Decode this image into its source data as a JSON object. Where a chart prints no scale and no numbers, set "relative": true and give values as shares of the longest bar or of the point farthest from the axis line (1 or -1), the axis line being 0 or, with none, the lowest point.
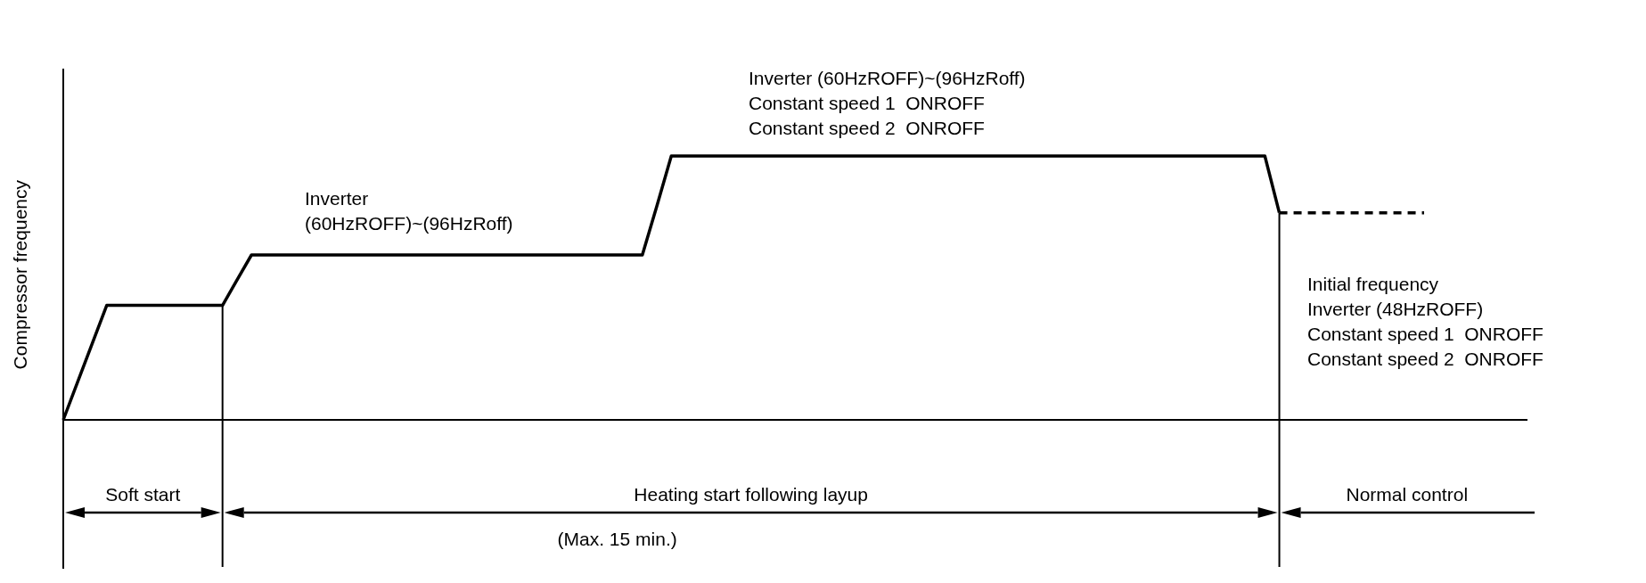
{
  "chart_data": {
    "type": "line",
    "relative": true,
    "ylabel": "Compressor frequency",
    "categories": [
      null,
      null,
      null,
      null,
      null,
      null,
      null,
      null,
      null,
      null,
      null,
      null,
      null,
      null,
      null,
      null,
      null,
      null,
      null,
      null,
      null,
      null,
      null,
      null,
      null,
      null,
      null,
      null,
      null,
      null,
      null,
      null,
      null,
      null,
      null,
      null,
      null,
      null,
      null,
      null,
      null,
      null,
      null,
      null,
      null,
      null,
      null,
      null,
      null,
      null,
      null,
      null,
      null,
      null,
      null,
      null,
      null,
      null,
      null,
      null,
      null,
      null,
      null,
      null,
      null,
      null,
      null,
      null,
      null,
      null,
      null,
      null,
      null,
      null,
      null,
      null,
      null,
      null,
      null,
      null,
      null,
      null,
      null,
      null,
      null,
      null,
      null,
      null,
      null,
      null,
      null,
      null,
      null,
      null,
      null
    ],
    "series": [
      {
        "color": "#000000",
        "line_style": "solid",
        "values": [
          0,
          0.145,
          0.289,
          0.434,
          0.434,
          0.434,
          0.434,
          0.434,
          0.434,
          0.434,
          0.434,
          0.434,
          0.53,
          0.625,
          0.625,
          0.625,
          0.625,
          0.625,
          0.625,
          0.625,
          0.625,
          0.625,
          0.625,
          0.625,
          0.625,
          0.625,
          0.625,
          0.625,
          0.625,
          0.625,
          0.625,
          0.625,
          0.625,
          0.625,
          0.625,
          0.625,
          0.625,
          0.625,
          0.625,
          0.625,
          0.625,
          0.81,
          1,
          1,
          1,
          1,
          1,
          1,
          1,
          1,
          1,
          1,
          1,
          1,
          1,
          1,
          1,
          1,
          1,
          1,
          1,
          1,
          1,
          1,
          1,
          1,
          1,
          1,
          1,
          1,
          1,
          1,
          1,
          1,
          1,
          1,
          1,
          1,
          1,
          1,
          1,
          1,
          1,
          1,
          0.785,
          null,
          null,
          null,
          null,
          null,
          null,
          null,
          null,
          null,
          null
        ]
      },
      {
        "color": "#000000",
        "line_style": "dashed",
        "values": [
          null,
          null,
          null,
          null,
          null,
          null,
          null,
          null,
          null,
          null,
          null,
          null,
          null,
          null,
          null,
          null,
          null,
          null,
          null,
          null,
          null,
          null,
          null,
          null,
          null,
          null,
          null,
          null,
          null,
          null,
          null,
          null,
          null,
          null,
          null,
          null,
          null,
          null,
          null,
          null,
          null,
          null,
          null,
          null,
          null,
          null,
          null,
          null,
          null,
          null,
          null,
          null,
          null,
          null,
          null,
          null,
          null,
          null,
          null,
          null,
          null,
          null,
          null,
          null,
          null,
          null,
          null,
          null,
          null,
          null,
          null,
          null,
          null,
          null,
          null,
          null,
          null,
          null,
          null,
          null,
          null,
          null,
          null,
          null,
          0.785,
          0.785,
          0.785,
          0.785,
          0.785,
          0.785,
          0.785,
          0.785,
          0.785,
          0.785,
          0.785
        ]
      }
    ],
    "annotations": [
      "Inverter (60HzROFF)~(96HzRoff)\nConstant speed 1  ONROFF\nConstant speed 2  ONROFF",
      "Inverter\n(60HzROFF)~(96HzRoff)",
      "Initial frequency\nInverter (48HzROFF)\nConstant speed 1  ONROFF\nConstant speed 2  ONROFF",
      "Soft start",
      "Heating start following layup",
      "(Max. 15 min.)",
      "Normal control"
    ]
  }
}
